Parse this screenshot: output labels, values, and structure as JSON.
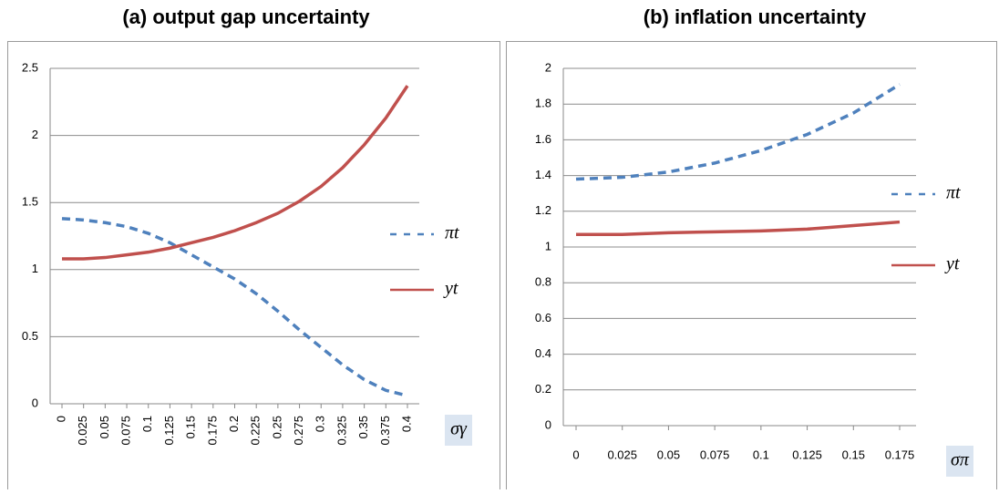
{
  "chart_data": [
    {
      "type": "line",
      "title": "(a) output gap uncertainty",
      "x_label": "σγ",
      "categories": [
        "0",
        "0.025",
        "0.05",
        "0.075",
        "0.1",
        "0.125",
        "0.15",
        "0.175",
        "0.2",
        "0.225",
        "0.25",
        "0.275",
        "0.3",
        "0.325",
        "0.35",
        "0.375",
        "0.4"
      ],
      "series": [
        {
          "name": "πt",
          "color": "#4f81bd",
          "dash": true,
          "values": [
            1.38,
            1.37,
            1.35,
            1.32,
            1.27,
            1.2,
            1.11,
            1.02,
            0.93,
            0.82,
            0.69,
            0.55,
            0.42,
            0.29,
            0.18,
            0.1,
            0.06
          ]
        },
        {
          "name": "yt",
          "color": "#c0504d",
          "dash": false,
          "values": [
            1.08,
            1.08,
            1.09,
            1.11,
            1.13,
            1.16,
            1.2,
            1.24,
            1.29,
            1.35,
            1.42,
            1.51,
            1.62,
            1.76,
            1.93,
            2.13,
            2.37
          ]
        }
      ],
      "ylim": [
        0,
        2.5
      ],
      "yticks": [
        0,
        0.5,
        1,
        1.5,
        2,
        2.5
      ],
      "grid": true
    },
    {
      "type": "line",
      "title": "(b) inflation uncertainty",
      "x_label": "σπ",
      "categories": [
        "0",
        "0.025",
        "0.05",
        "0.075",
        "0.1",
        "0.125",
        "0.15",
        "0.175"
      ],
      "series": [
        {
          "name": "πt",
          "color": "#4f81bd",
          "dash": true,
          "values": [
            1.38,
            1.39,
            1.42,
            1.47,
            1.54,
            1.63,
            1.75,
            1.91
          ]
        },
        {
          "name": "yt",
          "color": "#c0504d",
          "dash": false,
          "values": [
            1.07,
            1.07,
            1.08,
            1.085,
            1.09,
            1.1,
            1.12,
            1.14
          ]
        }
      ],
      "ylim": [
        0,
        2
      ],
      "yticks": [
        0,
        0.2,
        0.4,
        0.6,
        0.8,
        1,
        1.2,
        1.4,
        1.6,
        1.8,
        2
      ],
      "grid": true
    }
  ]
}
